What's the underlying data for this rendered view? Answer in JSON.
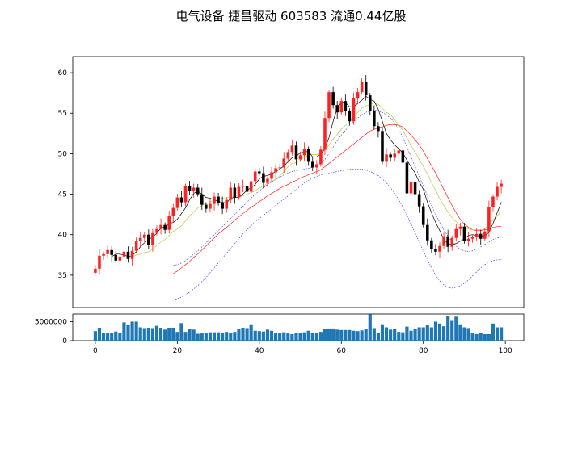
{
  "chart_data": {
    "type": "candlestick",
    "title": "电气设备 捷昌驱动 603583 流通0.44亿股",
    "price_axis": {
      "ylim": [
        31,
        62
      ],
      "ticks": [
        35,
        40,
        45,
        50,
        55,
        60
      ]
    },
    "volume_axis": {
      "ylim": [
        0,
        7000000
      ],
      "ticks": [
        0,
        5000000
      ],
      "tick_labels": [
        "0",
        "5000000"
      ]
    },
    "x_axis": {
      "xlim": [
        -5.5,
        104.5
      ],
      "ticks": [
        0,
        20,
        40,
        60,
        80,
        100
      ]
    },
    "colors": {
      "up": "#ff2020",
      "down": "#000000",
      "ma_short": "#000000",
      "ma_mid": "#b5cf3a",
      "ma_long": "#ff2020",
      "bollinger": "#4040ff",
      "volume": "#1f77b4"
    },
    "close": [
      35.8,
      37.4,
      37.6,
      38.1,
      37.5,
      36.8,
      37.3,
      37.9,
      37.0,
      38.0,
      39.2,
      39.6,
      40.0,
      38.7,
      40.2,
      40.7,
      41.2,
      40.6,
      42.3,
      43.3,
      44.6,
      44.0,
      46.0,
      45.4,
      45.8,
      45.0,
      43.7,
      43.2,
      43.8,
      44.7,
      43.9,
      43.2,
      44.3,
      45.8,
      44.6,
      45.9,
      46.0,
      45.3,
      46.6,
      47.8,
      47.6,
      46.4,
      46.9,
      47.7,
      48.2,
      48.3,
      49.4,
      50.2,
      51.0,
      49.3,
      49.8,
      50.6,
      49.0,
      48.3,
      48.7,
      50.5,
      54.4,
      57.6,
      56.0,
      55.1,
      56.5,
      55.3,
      54.0,
      56.9,
      57.6,
      58.9,
      57.2,
      55.3,
      53.4,
      52.8,
      49.0,
      49.9,
      49.5,
      50.0,
      50.4,
      48.9,
      45.1,
      46.5,
      45.0,
      43.5,
      41.2,
      39.3,
      38.2,
      37.9,
      38.6,
      39.8,
      38.5,
      39.6,
      40.7,
      41.0,
      39.2,
      39.5,
      39.7,
      40.1,
      39.5,
      40.4,
      43.4,
      44.7,
      45.9,
      46.3
    ],
    "ma_short": [
      null,
      null,
      null,
      null,
      37.3,
      37.6,
      37.6,
      37.5,
      37.3,
      37.4,
      37.9,
      38.5,
      39.0,
      39.4,
      39.7,
      40.2,
      40.8,
      41.0,
      41.4,
      41.5,
      41.9,
      42.6,
      43.3,
      44.3,
      45.1,
      45.4,
      45.0,
      44.6,
      44.5,
      44.3,
      44.1,
      44.0,
      43.9,
      44.5,
      44.6,
      44.6,
      45.0,
      45.5,
      45.8,
      46.2,
      46.9,
      47.2,
      47.3,
      47.5,
      47.8,
      48.1,
      48.5,
      49.0,
      49.5,
      49.7,
      50.1,
      50.2,
      50.3,
      49.6,
      49.6,
      50.0,
      50.6,
      52.0,
      54.0,
      55.6,
      56.4,
      56.3,
      55.8,
      55.8,
      56.2,
      56.6,
      57.1,
      56.7,
      56.5,
      55.5,
      54.0,
      52.5,
      51.7,
      51.1,
      50.6,
      50.1,
      49.2,
      48.4,
      47.6,
      46.5,
      45.6,
      44.0,
      42.7,
      41.5,
      40.5,
      39.4,
      38.9,
      38.8,
      38.9,
      39.2,
      39.5,
      39.9,
      40.0,
      39.9,
      39.8,
      39.8,
      40.3,
      41.4,
      42.7,
      44.0
    ],
    "ma_mid": [
      null,
      null,
      null,
      null,
      null,
      null,
      null,
      null,
      null,
      37.3,
      37.5,
      37.6,
      37.8,
      37.9,
      38.2,
      38.7,
      39.1,
      39.4,
      39.9,
      40.4,
      40.7,
      41.1,
      41.7,
      42.3,
      42.8,
      43.3,
      43.6,
      43.8,
      44.0,
      44.3,
      44.4,
      44.5,
      44.6,
      44.7,
      44.6,
      44.6,
      44.8,
      45.0,
      45.2,
      45.4,
      45.8,
      46.0,
      46.4,
      46.6,
      46.8,
      47.3,
      47.8,
      48.4,
      48.8,
      48.9,
      49.2,
      49.6,
      49.8,
      49.9,
      49.9,
      50.1,
      50.4,
      51.1,
      51.8,
      52.4,
      53.0,
      53.5,
      53.9,
      54.5,
      55.1,
      55.6,
      55.9,
      56.1,
      56.3,
      56.1,
      55.6,
      55.1,
      54.8,
      54.2,
      53.5,
      52.9,
      51.9,
      51.0,
      50.2,
      49.3,
      48.4,
      47.5,
      46.4,
      45.5,
      44.4,
      43.6,
      42.8,
      42.1,
      41.6,
      41.1,
      40.8,
      40.7,
      40.6,
      40.6,
      40.6,
      40.7,
      41.3,
      41.8,
      42.3,
      42.9
    ],
    "ma_long": [
      null,
      null,
      null,
      null,
      null,
      null,
      null,
      null,
      null,
      null,
      null,
      null,
      null,
      null,
      null,
      null,
      null,
      null,
      null,
      35.2,
      35.5,
      35.9,
      36.3,
      36.7,
      37.2,
      37.6,
      38.1,
      38.6,
      39.1,
      39.6,
      40.1,
      40.5,
      40.9,
      41.3,
      41.8,
      42.2,
      42.6,
      43.0,
      43.4,
      43.7,
      44.1,
      44.4,
      44.8,
      45.1,
      45.4,
      45.7,
      46.0,
      46.2,
      46.5,
      46.7,
      47.0,
      47.2,
      47.4,
      47.6,
      47.8,
      48.0,
      48.4,
      48.8,
      49.2,
      49.6,
      50.0,
      50.4,
      50.8,
      51.2,
      51.6,
      52.0,
      52.4,
      52.8,
      53.0,
      53.2,
      53.3,
      53.5,
      53.6,
      53.6,
      53.5,
      53.3,
      52.8,
      52.3,
      51.7,
      51.1,
      50.3,
      49.4,
      48.5,
      47.6,
      46.6,
      45.6,
      44.6,
      43.6,
      42.7,
      41.9,
      41.3,
      40.9,
      40.6,
      40.5,
      40.5,
      40.6,
      40.7,
      40.9,
      41.0,
      41.0
    ],
    "boll_upper": [
      null,
      null,
      null,
      null,
      null,
      null,
      null,
      null,
      null,
      null,
      null,
      null,
      null,
      null,
      null,
      null,
      null,
      null,
      null,
      36.2,
      36.3,
      36.5,
      36.8,
      37.2,
      37.6,
      38.0,
      38.5,
      39.0,
      39.5,
      40.0,
      40.5,
      41.0,
      41.5,
      42.0,
      42.5,
      43.0,
      43.5,
      44.0,
      44.5,
      45.0,
      45.4,
      45.8,
      46.2,
      46.5,
      46.8,
      47.1,
      47.4,
      47.6,
      47.8,
      47.9,
      48.0,
      48.1,
      48.2,
      48.3,
      48.5,
      48.8,
      49.3,
      50.0,
      50.8,
      51.6,
      52.3,
      52.9,
      53.5,
      54.0,
      54.4,
      54.8,
      55.1,
      55.3,
      55.4,
      55.3,
      55.1,
      54.8,
      54.4,
      53.8,
      53.0,
      52.0,
      50.8,
      49.6,
      48.4,
      47.2,
      46.0,
      44.8,
      43.6,
      42.5,
      41.5,
      40.6,
      39.8,
      39.1,
      38.6,
      38.2,
      38.0,
      37.9,
      38.0,
      38.2,
      38.5,
      38.8,
      39.1,
      39.4,
      39.6,
      39.7
    ],
    "boll_lower": [
      null,
      null,
      null,
      null,
      null,
      null,
      null,
      null,
      null,
      null,
      null,
      null,
      null,
      null,
      null,
      null,
      null,
      null,
      null,
      31.9,
      32.1,
      32.3,
      32.6,
      32.9,
      33.3,
      33.7,
      34.2,
      34.7,
      35.3,
      35.9,
      36.5,
      37.1,
      37.7,
      38.3,
      38.9,
      39.5,
      40.1,
      40.6,
      41.1,
      41.6,
      42.0,
      42.4,
      42.8,
      43.2,
      43.6,
      44.0,
      44.4,
      44.8,
      45.2,
      45.6,
      46.0,
      46.4,
      46.7,
      47.0,
      47.2,
      47.4,
      47.5,
      47.6,
      47.7,
      47.8,
      47.9,
      48.0,
      48.1,
      48.1,
      48.1,
      48.1,
      48.0,
      47.8,
      47.6,
      47.3,
      46.9,
      46.4,
      45.8,
      45.1,
      44.3,
      43.4,
      42.4,
      41.3,
      40.2,
      39.1,
      38.0,
      36.9,
      35.9,
      35.0,
      34.3,
      33.8,
      33.5,
      33.4,
      33.5,
      33.7,
      34.0,
      34.4,
      34.9,
      35.4,
      35.9,
      36.3,
      36.6,
      36.8,
      36.9,
      36.9
    ],
    "volume": [
      2500000,
      3400000,
      2100000,
      1900000,
      2000000,
      2400000,
      2000000,
      4800000,
      4100000,
      5000000,
      5000000,
      3500000,
      3300000,
      3400000,
      3300000,
      3900000,
      3400000,
      2900000,
      3400000,
      3400000,
      2300000,
      4600000,
      2300000,
      3000000,
      2900000,
      1800000,
      1900000,
      1900000,
      2200000,
      2200000,
      2200000,
      2000000,
      2300000,
      2100000,
      2300000,
      3000000,
      3400000,
      3300000,
      4300000,
      2600000,
      2500000,
      2400000,
      2900000,
      2600000,
      2100000,
      1900000,
      2200000,
      1900000,
      1700000,
      2000000,
      2100000,
      2200000,
      2600000,
      2100000,
      2100000,
      2300000,
      3100000,
      3200000,
      3200000,
      2900000,
      2800000,
      2800000,
      2800000,
      2600000,
      2500000,
      2700000,
      3100000,
      6900000,
      3300000,
      2000000,
      4300000,
      3500000,
      2900000,
      3100000,
      2300000,
      2200000,
      3700000,
      2600000,
      3200000,
      3500000,
      3500000,
      4200000,
      3500000,
      5000000,
      4500000,
      3800000,
      6500000,
      5200000,
      6300000,
      4300000,
      3500000,
      3300000,
      1900000,
      1700000,
      2100000,
      1700000,
      1700000,
      4500000,
      3500000,
      3500000
    ]
  }
}
